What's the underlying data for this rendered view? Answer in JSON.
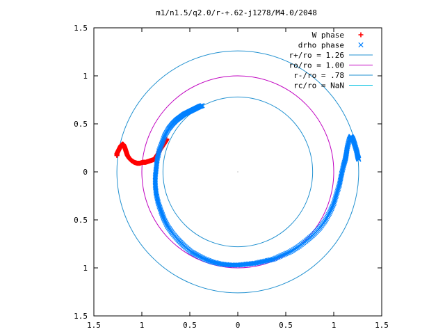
{
  "chart_data": {
    "type": "scatter",
    "title": "m1/n1.5/q2.0/r-+.62-j1278/M4.0/2048",
    "xlabel": "",
    "ylabel": "",
    "xlim": [
      -1.5,
      1.5
    ],
    "ylim": [
      -1.5,
      1.5
    ],
    "grid": false,
    "legend_position": "top-right",
    "x_tick_values": [
      -1.5,
      -1,
      -0.5,
      0,
      0.5,
      1,
      1.5
    ],
    "x_tick_labels": [
      "1.5",
      "1",
      "0.5",
      "0",
      "0.5",
      "1",
      "1.5"
    ],
    "y_tick_values": [
      1.5,
      1,
      0.5,
      0,
      -0.5,
      -1,
      -1.5
    ],
    "y_tick_labels": [
      "1.5",
      "1",
      "0.5",
      "0",
      "0.5",
      "1",
      "1.5"
    ],
    "series": [
      {
        "name": "W phase",
        "marker": "+",
        "color": "#ff0000",
        "points": [
          [
            -1.26,
            0.17
          ],
          [
            -1.26,
            0.19
          ],
          [
            -1.25,
            0.21
          ],
          [
            -1.24,
            0.23
          ],
          [
            -1.23,
            0.25
          ],
          [
            -1.22,
            0.27
          ],
          [
            -1.21,
            0.28
          ],
          [
            -1.2,
            0.29
          ],
          [
            -1.19,
            0.28
          ],
          [
            -1.18,
            0.26
          ],
          [
            -1.17,
            0.23
          ],
          [
            -1.16,
            0.2
          ],
          [
            -1.15,
            0.17
          ],
          [
            -1.13,
            0.14
          ],
          [
            -1.11,
            0.12
          ],
          [
            -1.08,
            0.1
          ],
          [
            -1.05,
            0.09
          ],
          [
            -1.02,
            0.09
          ],
          [
            -0.99,
            0.1
          ],
          [
            -0.96,
            0.1
          ],
          [
            -0.93,
            0.11
          ],
          [
            -0.9,
            0.12
          ],
          [
            -0.87,
            0.13
          ],
          [
            -0.85,
            0.16
          ],
          [
            -0.83,
            0.19
          ],
          [
            -0.81,
            0.23
          ],
          [
            -0.79,
            0.26
          ],
          [
            -0.77,
            0.29
          ],
          [
            -0.75,
            0.32
          ],
          [
            -0.74,
            0.34
          ]
        ]
      },
      {
        "name": "drho phase",
        "marker": "x",
        "color": "#0080ff",
        "points": [
          [
            -0.37,
            0.69
          ],
          [
            -0.4,
            0.68
          ],
          [
            -0.44,
            0.66
          ],
          [
            -0.48,
            0.64
          ],
          [
            -0.52,
            0.62
          ],
          [
            -0.56,
            0.6
          ],
          [
            -0.6,
            0.57
          ],
          [
            -0.64,
            0.54
          ],
          [
            -0.68,
            0.5
          ],
          [
            -0.72,
            0.45
          ],
          [
            -0.76,
            0.38
          ],
          [
            -0.79,
            0.3
          ],
          [
            -0.82,
            0.22
          ],
          [
            -0.84,
            0.13
          ],
          [
            -0.85,
            0.04
          ],
          [
            -0.86,
            -0.05
          ],
          [
            -0.86,
            -0.14
          ],
          [
            -0.85,
            -0.23
          ],
          [
            -0.83,
            -0.32
          ],
          [
            -0.8,
            -0.41
          ],
          [
            -0.77,
            -0.49
          ],
          [
            -0.73,
            -0.57
          ],
          [
            -0.68,
            -0.64
          ],
          [
            -0.62,
            -0.71
          ],
          [
            -0.56,
            -0.77
          ],
          [
            -0.49,
            -0.83
          ],
          [
            -0.42,
            -0.87
          ],
          [
            -0.34,
            -0.91
          ],
          [
            -0.26,
            -0.94
          ],
          [
            -0.17,
            -0.96
          ],
          [
            -0.08,
            -0.97
          ],
          [
            0.01,
            -0.97
          ],
          [
            0.1,
            -0.96
          ],
          [
            0.19,
            -0.95
          ],
          [
            0.28,
            -0.93
          ],
          [
            0.37,
            -0.91
          ],
          [
            0.46,
            -0.87
          ],
          [
            0.55,
            -0.83
          ],
          [
            0.63,
            -0.78
          ],
          [
            0.71,
            -0.72
          ],
          [
            0.78,
            -0.66
          ],
          [
            0.85,
            -0.59
          ],
          [
            0.91,
            -0.51
          ],
          [
            0.96,
            -0.42
          ],
          [
            1.0,
            -0.33
          ],
          [
            1.03,
            -0.23
          ],
          [
            1.06,
            -0.13
          ],
          [
            1.08,
            -0.03
          ],
          [
            1.1,
            0.06
          ],
          [
            1.12,
            0.13
          ],
          [
            1.13,
            0.18
          ],
          [
            1.14,
            0.25
          ],
          [
            1.16,
            0.33
          ],
          [
            1.18,
            0.37
          ],
          [
            1.2,
            0.34
          ],
          [
            1.22,
            0.28
          ],
          [
            1.24,
            0.21
          ],
          [
            1.25,
            0.16
          ],
          [
            1.26,
            0.13
          ]
        ]
      },
      {
        "name": "r+/ro = 1.26",
        "type": "circle",
        "radius": 1.26,
        "color": "#2090d0"
      },
      {
        "name": "ro/ro = 1.00",
        "type": "circle",
        "radius": 1.0,
        "color": "#c000c0"
      },
      {
        "name": "r-/ro = .78",
        "type": "circle",
        "radius": 0.78,
        "color": "#2090d0"
      },
      {
        "name": "rc/ro = NaN",
        "type": "circle",
        "radius": null,
        "color": "#00c0e0"
      }
    ]
  }
}
